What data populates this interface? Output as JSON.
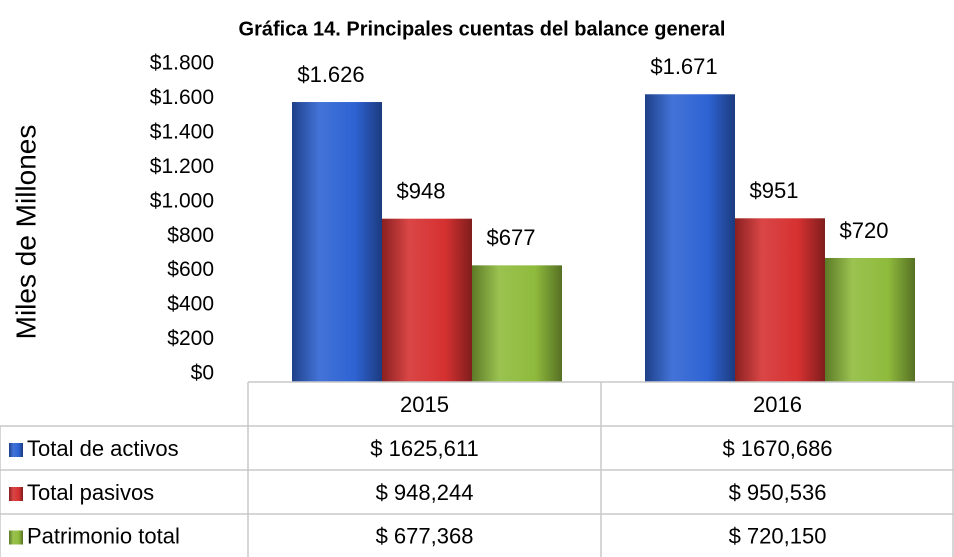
{
  "chart_data": {
    "type": "bar",
    "title": "Gráfica 14. Principales cuentas del balance general",
    "y_label": "Miles de Millones",
    "categories": [
      "2015",
      "2016"
    ],
    "series": [
      {
        "name": "Total de activos",
        "color": "#2e63d3",
        "values": [
          1625.611,
          1670.686
        ],
        "value_labels": [
          "$1.626",
          "$1.671"
        ],
        "table_labels": [
          "$ 1625,611",
          "$ 1670,686"
        ]
      },
      {
        "name": "Total pasivos",
        "color": "#d63131",
        "values": [
          948.244,
          950.536
        ],
        "value_labels": [
          "$948",
          "$951"
        ],
        "table_labels": [
          "$ 948,244",
          "$ 950,536"
        ]
      },
      {
        "name": "Patrimonio total",
        "color": "#8fbb3c",
        "values": [
          677.368,
          720.15
        ],
        "value_labels": [
          "$677",
          "$720"
        ],
        "table_labels": [
          "$ 677,368",
          "$ 720,150"
        ]
      }
    ],
    "ylim": [
      0,
      1800
    ],
    "yticks": [
      {
        "value": 0,
        "label": "$0"
      },
      {
        "value": 200,
        "label": "$200"
      },
      {
        "value": 400,
        "label": "$400"
      },
      {
        "value": 600,
        "label": "$600"
      },
      {
        "value": 800,
        "label": "$800"
      },
      {
        "value": 1000,
        "label": "$1.000"
      },
      {
        "value": 1200,
        "label": "$1.200"
      },
      {
        "value": 1400,
        "label": "$1.400"
      },
      {
        "value": 1600,
        "label": "$1.600"
      },
      {
        "value": 1800,
        "label": "$1.800"
      }
    ]
  }
}
